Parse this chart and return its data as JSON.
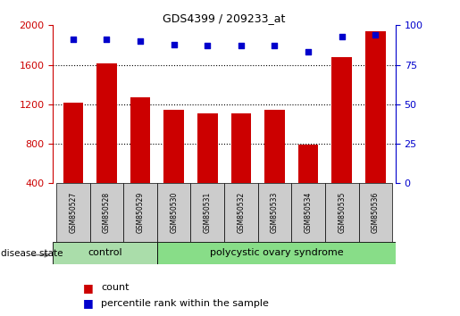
{
  "title": "GDS4399 / 209233_at",
  "samples": [
    "GSM850527",
    "GSM850528",
    "GSM850529",
    "GSM850530",
    "GSM850531",
    "GSM850532",
    "GSM850533",
    "GSM850534",
    "GSM850535",
    "GSM850536"
  ],
  "counts": [
    1220,
    1610,
    1270,
    1140,
    1110,
    1110,
    1140,
    790,
    1680,
    1940
  ],
  "percentiles": [
    91,
    91,
    90,
    88,
    87,
    87,
    87,
    83,
    93,
    94
  ],
  "bar_color": "#cc0000",
  "dot_color": "#0000cc",
  "ylim_left": [
    400,
    2000
  ],
  "ylim_right": [
    0,
    100
  ],
  "yticks_left": [
    400,
    800,
    1200,
    1600,
    2000
  ],
  "yticks_right": [
    0,
    25,
    50,
    75,
    100
  ],
  "grid_values": [
    800,
    1200,
    1600
  ],
  "control_samples": 3,
  "control_label": "control",
  "disease_label": "polycystic ovary syndrome",
  "disease_state_label": "disease state",
  "legend_count_label": "count",
  "legend_percentile_label": "percentile rank within the sample",
  "control_color": "#aaddaa",
  "disease_color": "#88dd88",
  "label_box_color": "#cccccc",
  "background_color": "#ffffff"
}
